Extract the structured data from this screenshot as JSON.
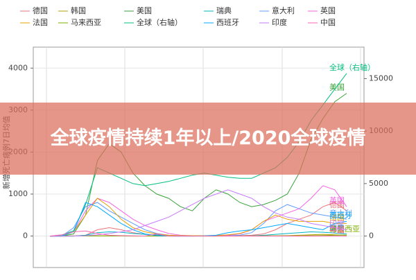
{
  "chart_data": {
    "type": "line",
    "banner": "全球疫情持续1年以上/2020全球疫情",
    "y_label": "新增死亡病例7日均值",
    "ylim": [
      -750,
      4500
    ],
    "yticks": [
      0,
      1000,
      2000,
      3000,
      4000
    ],
    "y2lim": [
      -3000,
      18000
    ],
    "y2ticks": [
      0,
      5000,
      10000,
      15000
    ],
    "grid": true,
    "series": [
      {
        "name": "德国",
        "color": "#e8747a",
        "values": [
          0,
          0,
          0,
          20,
          150,
          200,
          150,
          80,
          40,
          20,
          10,
          5,
          5,
          5,
          5,
          5,
          10,
          20,
          50,
          150,
          300,
          400,
          500,
          700,
          800,
          600
        ]
      },
      {
        "name": "韩国",
        "color": "#b79f00",
        "values": [
          0,
          5,
          5,
          5,
          5,
          5,
          3,
          2,
          1,
          1,
          1,
          1,
          1,
          1,
          2,
          3,
          3,
          3,
          3,
          5,
          10,
          20,
          30,
          40,
          30,
          20
        ]
      },
      {
        "name": "美国",
        "color": "#39a33a",
        "values": [
          0,
          0,
          50,
          500,
          1800,
          2200,
          2000,
          1500,
          1200,
          1000,
          900,
          700,
          600,
          900,
          1100,
          1000,
          800,
          700,
          750,
          850,
          1000,
          1500,
          2300,
          2800,
          3200,
          3400
        ]
      },
      {
        "name": "瑞典",
        "color": "#00b4c4",
        "values": [
          0,
          0,
          0,
          20,
          80,
          100,
          90,
          60,
          40,
          30,
          15,
          5,
          3,
          2,
          1,
          1,
          1,
          5,
          20,
          40,
          60,
          80,
          100,
          90,
          70,
          50
        ]
      },
      {
        "name": "意大利",
        "color": "#619cff",
        "values": [
          0,
          0,
          200,
          700,
          800,
          600,
          450,
          300,
          150,
          60,
          20,
          10,
          5,
          5,
          5,
          10,
          20,
          80,
          300,
          600,
          750,
          650,
          550,
          500,
          450,
          400
        ]
      },
      {
        "name": "英国",
        "color": "#f564e3",
        "values": [
          0,
          0,
          100,
          600,
          900,
          800,
          600,
          400,
          250,
          150,
          60,
          20,
          10,
          10,
          10,
          20,
          50,
          150,
          350,
          450,
          550,
          650,
          900,
          1200,
          1100,
          700
        ]
      },
      {
        "name": "法国",
        "color": "#e8a000",
        "values": [
          0,
          0,
          100,
          500,
          900,
          700,
          400,
          200,
          100,
          50,
          20,
          10,
          10,
          10,
          15,
          30,
          60,
          150,
          350,
          500,
          400,
          350,
          350,
          350,
          300,
          300
        ]
      },
      {
        "name": "马来西亚",
        "color": "#7cae00",
        "values": [
          0,
          0,
          1,
          2,
          3,
          2,
          1,
          0,
          0,
          0,
          0,
          0,
          0,
          0,
          0,
          1,
          2,
          3,
          4,
          5,
          5,
          6,
          10,
          15,
          20,
          25
        ]
      },
      {
        "name": "全球（右轴）",
        "color": "#00bf7d",
        "axis": "y2",
        "values": [
          0,
          100,
          500,
          3000,
          6500,
          6000,
          5500,
          5000,
          4800,
          5000,
          5200,
          5500,
          5800,
          6000,
          5800,
          5600,
          5500,
          5500,
          6000,
          6500,
          7500,
          9000,
          11000,
          12500,
          14000,
          15500
        ]
      },
      {
        "name": "西班牙",
        "color": "#00a9ff",
        "values": [
          0,
          0,
          100,
          800,
          700,
          500,
          300,
          150,
          50,
          10,
          2,
          0,
          0,
          5,
          20,
          80,
          120,
          150,
          200,
          250,
          300,
          250,
          200,
          150,
          300,
          350
        ]
      },
      {
        "name": "印度",
        "color": "#c77cff",
        "values": [
          0,
          0,
          0,
          10,
          30,
          60,
          100,
          150,
          250,
          350,
          450,
          600,
          750,
          900,
          1000,
          1100,
          1000,
          900,
          700,
          550,
          450,
          400,
          300,
          250,
          200,
          150
        ]
      },
      {
        "name": "中国",
        "color": "#ff64b0",
        "values": [
          0,
          30,
          100,
          120,
          60,
          20,
          10,
          5,
          2,
          50,
          0,
          0,
          0,
          0,
          0,
          0,
          0,
          0,
          0,
          0,
          0,
          0,
          0,
          0,
          0,
          0
        ]
      }
    ]
  }
}
